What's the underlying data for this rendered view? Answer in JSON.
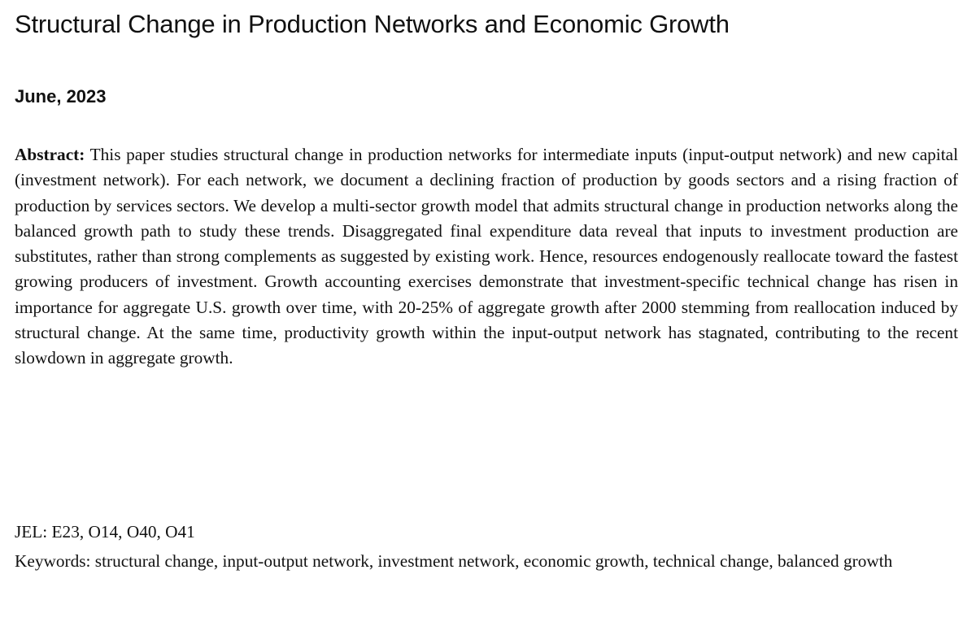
{
  "paper": {
    "title": "Structural Change in Production Networks and Economic Growth",
    "date": "June, 2023",
    "abstract_label": "Abstract:",
    "abstract_text": "This paper studies structural change in production networks for intermediate inputs (input-output network) and new capital (investment network).  For each network, we document a declining fraction of production by goods sectors and a rising fraction of production by services sectors.  We develop a multi-sector growth model that admits structural change in production networks along the balanced growth path to study these trends.  Disaggregated final expenditure data reveal that inputs to investment production are substitutes, rather than strong complements as suggested by existing work. Hence, resources endogenously reallocate toward the fastest growing producers of investment.  Growth accounting exercises demonstrate that investment-specific technical change has risen in importance for aggregate U.S. growth over time, with 20-25% of aggregate growth after 2000 stemming from reallocation induced by structural change.  At the same time, productivity growth within the input-output network has stagnated, contributing to the recent slowdown in aggregate growth.",
    "jel": "JEL: E23, O14, O40, O41",
    "keywords": "Keywords: structural change, input-output network, investment network, economic growth, technical change, balanced growth"
  }
}
